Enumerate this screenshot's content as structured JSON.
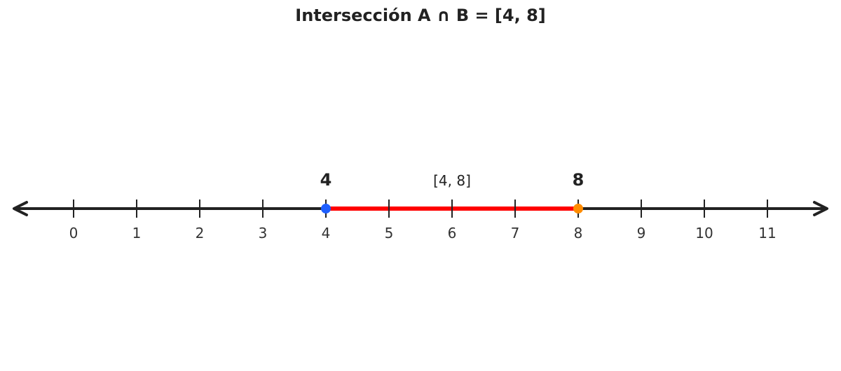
{
  "title": "Intersección A ∩ B = [4, 8]",
  "number_line": {
    "min": 0,
    "max": 11,
    "ticks": [
      "0",
      "1",
      "2",
      "3",
      "4",
      "5",
      "6",
      "7",
      "8",
      "9",
      "10",
      "11"
    ],
    "axis_color": "#222222",
    "arrows": "both"
  },
  "interval": {
    "notation": "[4, 8]",
    "start": 4,
    "end": 8,
    "start_closed": true,
    "end_closed": true,
    "segment_color": "#ff0000",
    "start_label": "4",
    "end_label": "8",
    "start_point_color": "#1f5fff",
    "end_point_color": "#ff8c00"
  }
}
